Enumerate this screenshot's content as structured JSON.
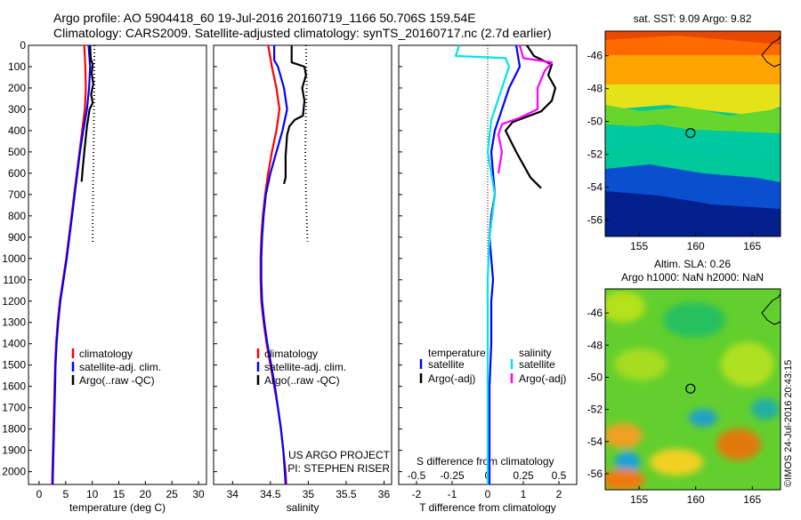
{
  "header": {
    "line1": "Argo profile: AO 5904418_60 19-Jul-2016 20160719_1166 50.706S 159.54E",
    "line2": "Climatology: CARS2009. Satellite-adjusted climatology: synTS_20160717.nc (2.7d earlier)"
  },
  "colors": {
    "climatology": "#ff0000",
    "satellite_adj": "#0000ff",
    "argo": "#000000",
    "sat_salinity": "#00e5e5",
    "argo_adj_salinity": "#ff00ff"
  },
  "depth_axis": {
    "ticks": [
      0,
      100,
      200,
      300,
      400,
      500,
      600,
      700,
      800,
      900,
      1000,
      1100,
      1200,
      1300,
      1400,
      1500,
      1600,
      1700,
      1800,
      1900,
      2000
    ],
    "range": [
      0,
      2060
    ]
  },
  "chart_data": [
    {
      "type": "line",
      "id": "temperature",
      "xlabel": "temperature (deg C)",
      "xlim": [
        -2,
        31.5
      ],
      "xticks": [
        0,
        5,
        10,
        15,
        20,
        25,
        30
      ],
      "ylim": [
        0,
        2060
      ],
      "legend": [
        "climatology",
        "satellite-adj. clim.",
        "Argo(..raw -QC)"
      ],
      "series": [
        {
          "name": "climatology",
          "color": "#ff0000",
          "points": [
            [
              8.5,
              0
            ],
            [
              8.7,
              100
            ],
            [
              8.8,
              200
            ],
            [
              8.6,
              300
            ],
            [
              8.1,
              400
            ],
            [
              7.6,
              500
            ],
            [
              7.1,
              600
            ],
            [
              6.6,
              700
            ],
            [
              6.1,
              800
            ],
            [
              5.6,
              900
            ],
            [
              5.1,
              1000
            ],
            [
              4.5,
              1100
            ],
            [
              3.9,
              1200
            ],
            [
              3.5,
              1300
            ],
            [
              3.2,
              1400
            ],
            [
              3.0,
              1500
            ],
            [
              2.9,
              1600
            ],
            [
              2.8,
              1700
            ],
            [
              2.7,
              1800
            ],
            [
              2.6,
              1900
            ],
            [
              2.5,
              2000
            ],
            [
              2.45,
              2060
            ]
          ]
        },
        {
          "name": "satellite-adj. clim.",
          "color": "#0000ff",
          "points": [
            [
              9.3,
              0
            ],
            [
              9.6,
              100
            ],
            [
              9.4,
              200
            ],
            [
              9.0,
              300
            ],
            [
              8.3,
              400
            ],
            [
              7.7,
              500
            ],
            [
              7.2,
              600
            ],
            [
              6.7,
              700
            ],
            [
              6.2,
              800
            ],
            [
              5.7,
              900
            ],
            [
              5.2,
              1000
            ],
            [
              4.6,
              1100
            ],
            [
              4.0,
              1200
            ],
            [
              3.6,
              1300
            ],
            [
              3.3,
              1400
            ],
            [
              3.1,
              1500
            ],
            [
              3.0,
              1600
            ],
            [
              2.9,
              1700
            ],
            [
              2.8,
              1800
            ],
            [
              2.7,
              1900
            ],
            [
              2.6,
              2000
            ],
            [
              2.55,
              2060
            ]
          ]
        },
        {
          "name": "Argo(..raw -QC)",
          "color": "#000000",
          "points": [
            [
              9.6,
              0
            ],
            [
              9.7,
              60
            ],
            [
              10.1,
              90
            ],
            [
              9.9,
              130
            ],
            [
              10.2,
              180
            ],
            [
              9.8,
              230
            ],
            [
              10.1,
              270
            ],
            [
              9.5,
              300
            ],
            [
              9.0,
              380
            ],
            [
              8.5,
              500
            ],
            [
              8.2,
              580
            ],
            [
              8.0,
              640
            ]
          ]
        },
        {
          "name": "Argo(..raw -QC) dotted",
          "color": "#000000",
          "dotted": true,
          "points": [
            [
              10.4,
              0
            ],
            [
              10.4,
              200
            ],
            [
              10.3,
              400
            ],
            [
              10.2,
              600
            ],
            [
              10.1,
              800
            ],
            [
              10.1,
              930
            ]
          ]
        }
      ]
    },
    {
      "type": "line",
      "id": "salinity",
      "xlabel": "salinity",
      "xlim": [
        33.75,
        36.1
      ],
      "xticks": [
        34,
        34.5,
        35,
        35.5,
        36
      ],
      "ylim": [
        0,
        2060
      ],
      "legend": [
        "climatology",
        "satellite-adj. clim.",
        "Argo(..raw -QC)"
      ],
      "annotation": [
        "US ARGO PROJECT",
        "PI: STEPHEN RISER"
      ],
      "series": [
        {
          "name": "climatology",
          "color": "#ff0000",
          "points": [
            [
              34.47,
              0
            ],
            [
              34.52,
              100
            ],
            [
              34.58,
              200
            ],
            [
              34.62,
              300
            ],
            [
              34.58,
              400
            ],
            [
              34.52,
              500
            ],
            [
              34.47,
              600
            ],
            [
              34.43,
              700
            ],
            [
              34.4,
              800
            ],
            [
              34.38,
              900
            ],
            [
              34.37,
              1000
            ],
            [
              34.37,
              1100
            ],
            [
              34.38,
              1200
            ],
            [
              34.41,
              1300
            ],
            [
              34.45,
              1400
            ],
            [
              34.5,
              1500
            ],
            [
              34.55,
              1600
            ],
            [
              34.6,
              1700
            ],
            [
              34.64,
              1800
            ],
            [
              34.67,
              1900
            ],
            [
              34.7,
              2000
            ],
            [
              34.71,
              2060
            ]
          ]
        },
        {
          "name": "satellite-adj. clim.",
          "color": "#0000ff",
          "points": [
            [
              34.55,
              0
            ],
            [
              34.55,
              70
            ],
            [
              34.6,
              100
            ],
            [
              34.68,
              200
            ],
            [
              34.72,
              300
            ],
            [
              34.66,
              400
            ],
            [
              34.58,
              500
            ],
            [
              34.5,
              600
            ],
            [
              34.44,
              700
            ],
            [
              34.41,
              800
            ],
            [
              34.39,
              900
            ],
            [
              34.38,
              1000
            ],
            [
              34.38,
              1100
            ],
            [
              34.39,
              1200
            ],
            [
              34.42,
              1300
            ],
            [
              34.46,
              1400
            ],
            [
              34.51,
              1500
            ],
            [
              34.56,
              1600
            ],
            [
              34.6,
              1700
            ],
            [
              34.64,
              1800
            ],
            [
              34.67,
              1900
            ],
            [
              34.69,
              2000
            ],
            [
              34.7,
              2060
            ]
          ]
        },
        {
          "name": "Argo(..raw -QC)",
          "color": "#000000",
          "points": [
            [
              34.78,
              0
            ],
            [
              34.78,
              80
            ],
            [
              34.95,
              100
            ],
            [
              34.97,
              140
            ],
            [
              34.92,
              200
            ],
            [
              34.95,
              260
            ],
            [
              34.93,
              330
            ],
            [
              34.82,
              350
            ],
            [
              34.75,
              380
            ],
            [
              34.72,
              420
            ],
            [
              34.7,
              520
            ],
            [
              34.7,
              620
            ],
            [
              34.68,
              650
            ]
          ]
        },
        {
          "name": "Argo(..raw -QC) dotted",
          "color": "#000000",
          "dotted": true,
          "points": [
            [
              34.97,
              0
            ],
            [
              34.98,
              200
            ],
            [
              34.97,
              300
            ],
            [
              34.96,
              500
            ],
            [
              34.97,
              700
            ],
            [
              34.99,
              920
            ]
          ]
        }
      ]
    },
    {
      "type": "line",
      "id": "difference",
      "xlabel": "T difference from climatology",
      "xlabel_top": "S difference from climatology",
      "xlim": [
        -2.5,
        2.5
      ],
      "xticks": [
        -2,
        -1,
        0,
        1,
        2
      ],
      "xticks_salinity": [
        "-0.5",
        "-0.25",
        "0",
        "0.25",
        "0.5"
      ],
      "ylim": [
        0,
        2060
      ],
      "legend_headers": [
        "temperature",
        "salinity"
      ],
      "legend": [
        "satellite",
        "Argo(-adj)",
        "satellite",
        "Argo(-adj)"
      ],
      "series": [
        {
          "name": "T satellite",
          "color": "#0000ff",
          "points": [
            [
              0.8,
              0
            ],
            [
              0.9,
              100
            ],
            [
              0.6,
              200
            ],
            [
              0.4,
              300
            ],
            [
              0.2,
              400
            ],
            [
              0.1,
              500
            ],
            [
              0.15,
              600
            ],
            [
              0.2,
              700
            ],
            [
              0.1,
              800
            ],
            [
              0.05,
              900
            ],
            [
              0.1,
              1000
            ],
            [
              0.15,
              1100
            ],
            [
              0.1,
              1200
            ],
            [
              0.1,
              1300
            ],
            [
              0.1,
              1400
            ],
            [
              0.05,
              1600
            ],
            [
              0.05,
              1800
            ],
            [
              0.05,
              2000
            ],
            [
              0.05,
              2060
            ]
          ]
        },
        {
          "name": "T Argo(-adj)",
          "color": "#000000",
          "points": [
            [
              1.1,
              0
            ],
            [
              1.3,
              50
            ],
            [
              1.8,
              90
            ],
            [
              1.7,
              140
            ],
            [
              1.9,
              200
            ],
            [
              1.8,
              260
            ],
            [
              1.5,
              310
            ],
            [
              0.7,
              360
            ],
            [
              0.5,
              400
            ],
            [
              0.8,
              500
            ],
            [
              1.0,
              560
            ],
            [
              1.2,
              620
            ],
            [
              1.5,
              670
            ]
          ]
        },
        {
          "name": "S satellite",
          "color": "#00e5e5",
          "points": [
            [
              -0.8,
              0
            ],
            [
              -0.9,
              50
            ],
            [
              0.5,
              60
            ],
            [
              0.6,
              100
            ],
            [
              0.4,
              200
            ],
            [
              0.1,
              350
            ],
            [
              0.0,
              500
            ],
            [
              0.1,
              600
            ],
            [
              0.2,
              700
            ],
            [
              0.05,
              900
            ],
            [
              0.0,
              1100
            ],
            [
              0.0,
              1300
            ],
            [
              0.0,
              1500
            ],
            [
              0.0,
              1800
            ],
            [
              0.0,
              2060
            ]
          ]
        },
        {
          "name": "S Argo(-adj)",
          "color": "#ff00ff",
          "points": [
            [
              0.9,
              0
            ],
            [
              1.0,
              60
            ],
            [
              1.8,
              80
            ],
            [
              1.6,
              120
            ],
            [
              1.4,
              200
            ],
            [
              1.4,
              300
            ],
            [
              0.9,
              340
            ],
            [
              0.4,
              370
            ],
            [
              0.3,
              420
            ],
            [
              0.4,
              500
            ],
            [
              0.3,
              600
            ]
          ]
        }
      ]
    },
    {
      "type": "heatmap",
      "id": "sst-map",
      "title": "sat. SST: 9.09 Argo: 9.82",
      "xlim": [
        152,
        167.5
      ],
      "ylim": [
        -57,
        -44.5
      ],
      "xticks": [
        155,
        160,
        165
      ],
      "yticks": [
        -46,
        -48,
        -50,
        -52,
        -54,
        -56
      ],
      "marker": [
        159.54,
        -50.706
      ]
    },
    {
      "type": "heatmap",
      "id": "sla-map",
      "title": "Altim. SLA: 0.26",
      "subtitle": "Argo h1000: NaN h2000: NaN",
      "xlim": [
        152,
        167.5
      ],
      "ylim": [
        -57,
        -44.5
      ],
      "xticks": [
        155,
        160,
        165
      ],
      "yticks": [
        -46,
        -48,
        -50,
        -52,
        -54,
        -56
      ],
      "marker": [
        159.54,
        -50.706
      ],
      "side_label": "©IMOS 24-Jul-2016 20:43:15"
    }
  ]
}
